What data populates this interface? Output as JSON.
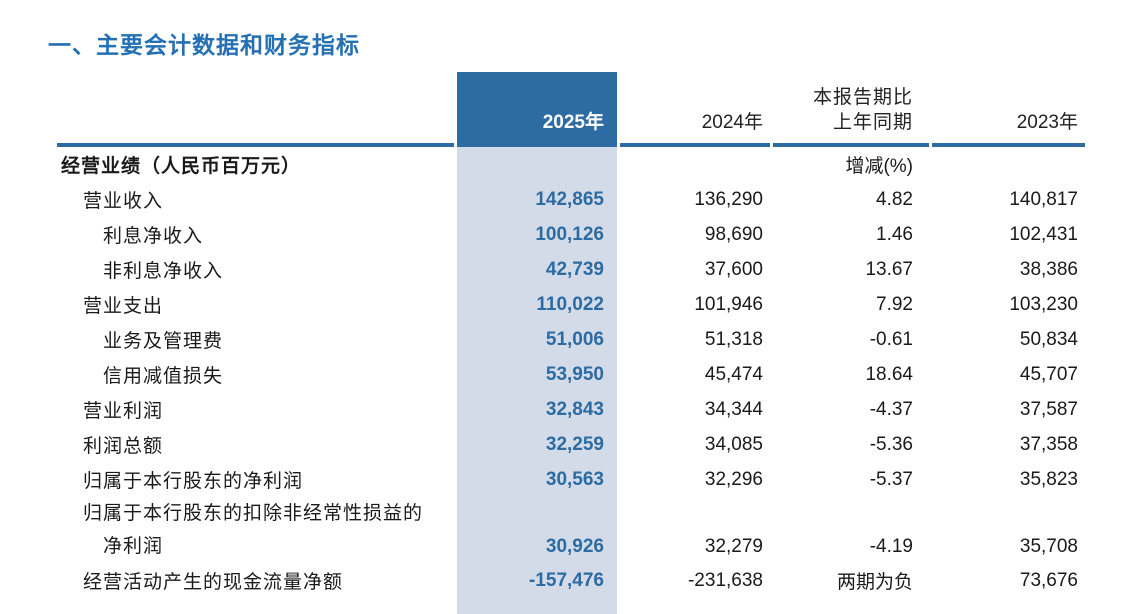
{
  "page": {
    "title": "一、主要会计数据和财务指标"
  },
  "colors": {
    "title_text": "#2470b3",
    "header_bg": "#2d6ba3",
    "rule": "#2d6ba3",
    "accent_text": "#2d6ba3",
    "highlight_col_bg": "#d3dbe8",
    "body_text": "#1a1a1a"
  },
  "table": {
    "columns": {
      "y2025": "2025年",
      "y2024": "2024年",
      "change_line1": "本报告期比",
      "change_line2": "上年同期",
      "y2023": "2023年"
    },
    "section": {
      "label": "经营业绩（人民币百万元）",
      "change_unit": "增减(%)"
    },
    "rows": [
      {
        "label": "营业收入",
        "v2025": "142,865",
        "v2024": "136,290",
        "change": "4.82",
        "v2023": "140,817"
      },
      {
        "label": "利息净收入",
        "v2025": "100,126",
        "v2024": "98,690",
        "change": "1.46",
        "v2023": "102,431"
      },
      {
        "label": "非利息净收入",
        "v2025": "42,739",
        "v2024": "37,600",
        "change": "13.67",
        "v2023": "38,386"
      },
      {
        "label": "营业支出",
        "v2025": "110,022",
        "v2024": "101,946",
        "change": "7.92",
        "v2023": "103,230"
      },
      {
        "label": "业务及管理费",
        "v2025": "51,006",
        "v2024": "51,318",
        "change": "-0.61",
        "v2023": "50,834"
      },
      {
        "label": "信用减值损失",
        "v2025": "53,950",
        "v2024": "45,474",
        "change": "18.64",
        "v2023": "45,707"
      },
      {
        "label": "营业利润",
        "v2025": "32,843",
        "v2024": "34,344",
        "change": "-4.37",
        "v2023": "37,587"
      },
      {
        "label": "利润总额",
        "v2025": "32,259",
        "v2024": "34,085",
        "change": "-5.36",
        "v2023": "37,358"
      },
      {
        "label": "归属于本行股东的净利润",
        "v2025": "30,563",
        "v2024": "32,296",
        "change": "-5.37",
        "v2023": "35,823"
      },
      {
        "label": "归属于本行股东的扣除非经常性损益的",
        "label_line2": "净利润",
        "v2025": "30,926",
        "v2024": "32,279",
        "change": "-4.19",
        "v2023": "35,708"
      },
      {
        "label": "经营活动产生的现金流量净额",
        "v2025": "-157,476",
        "v2024": "-231,638",
        "change": "两期为负",
        "v2023": "73,676"
      }
    ]
  }
}
